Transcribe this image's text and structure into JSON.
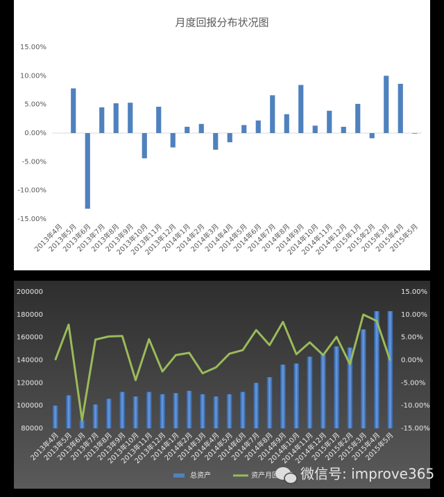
{
  "chart_data": [
    {
      "type": "bar",
      "title": "月度回报分布状况图",
      "categories": [
        "2013年4月",
        "2013年5月",
        "2013年6月",
        "2013年7月",
        "2013年8月",
        "2013年9月",
        "2013年10月",
        "2013年11月",
        "2013年12月",
        "2014年1月",
        "2014年2月",
        "2014年3月",
        "2014年4月",
        "2014年5月",
        "2014年6月",
        "2014年7月",
        "2014年8月",
        "2014年9月",
        "2014年10月",
        "2014年11月",
        "2014年12月",
        "2015年1月",
        "2015年2月",
        "2015年3月",
        "2015年4月",
        "2015年5月"
      ],
      "values": [
        0,
        7.8,
        -13.2,
        4.5,
        5.2,
        5.3,
        -4.4,
        4.6,
        -2.5,
        1.1,
        1.6,
        -2.9,
        -1.6,
        1.4,
        2.2,
        6.6,
        3.3,
        8.4,
        1.3,
        3.9,
        1.1,
        5.1,
        -0.9,
        10.0,
        8.6,
        -0.1
      ],
      "color": "#4f81bd",
      "ylim": [
        -15,
        15
      ],
      "yticks": [
        {
          "value": -15,
          "label": "-15.00%"
        },
        {
          "value": -10,
          "label": "-10.00%"
        },
        {
          "value": -5,
          "label": "-5.00%"
        },
        {
          "value": 0,
          "label": "0.00%"
        },
        {
          "value": 5,
          "label": "5.00%"
        },
        {
          "value": 10,
          "label": "10.00%"
        },
        {
          "value": 15,
          "label": "15.00%"
        }
      ],
      "grid": false
    },
    {
      "type": "combo",
      "categories": [
        "2013年4月",
        "2013年5月",
        "2013年6月",
        "2013年7月",
        "2013年8月",
        "2013年9月",
        "2013年10月",
        "2013年11月",
        "2013年12月",
        "2014年1月",
        "2014年2月",
        "2014年3月",
        "2014年4月",
        "2014年5月",
        "2014年6月",
        "2014年7月",
        "2014年8月",
        "2014年9月",
        "2014年10月",
        "2014年11月",
        "2014年12月",
        "2015年1月",
        "2015年2月",
        "2015年3月",
        "2015年4月",
        "2015年5月"
      ],
      "series": [
        {
          "name": "总资产",
          "type": "bar",
          "color": "#4f81bd",
          "values": [
            100000,
            109000,
            87000,
            101000,
            106000,
            112000,
            108000,
            112000,
            110000,
            111000,
            113000,
            110000,
            108000,
            110000,
            112000,
            120000,
            125000,
            136000,
            137000,
            143000,
            145000,
            152000,
            151000,
            167000,
            183000,
            183000
          ]
        },
        {
          "name": "资产月回报率",
          "type": "line",
          "axis": "y2",
          "color": "#9bbb59",
          "values": [
            0,
            7.8,
            -13.2,
            4.5,
            5.2,
            5.3,
            -4.4,
            4.6,
            -2.5,
            1.1,
            1.6,
            -2.9,
            -1.6,
            1.4,
            2.2,
            6.6,
            3.3,
            8.4,
            1.3,
            3.9,
            1.1,
            5.1,
            -0.9,
            10.0,
            8.6,
            -0.1
          ]
        }
      ],
      "ylim": [
        80000,
        200000
      ],
      "yticks": [
        80000,
        100000,
        120000,
        140000,
        160000,
        180000,
        200000
      ],
      "y2lim": [
        -15,
        15
      ],
      "y2ticks": [
        {
          "value": -15,
          "label": "-15.00%"
        },
        {
          "value": -10,
          "label": "-10.00%"
        },
        {
          "value": -5,
          "label": "-5.00%"
        },
        {
          "value": 0,
          "label": "0.00%"
        },
        {
          "value": 5,
          "label": "5.00%"
        },
        {
          "value": 10,
          "label": "10.00%"
        },
        {
          "value": 15,
          "label": "15.00%"
        }
      ],
      "legend": "bottom"
    }
  ],
  "watermark": "微信号: improve365"
}
